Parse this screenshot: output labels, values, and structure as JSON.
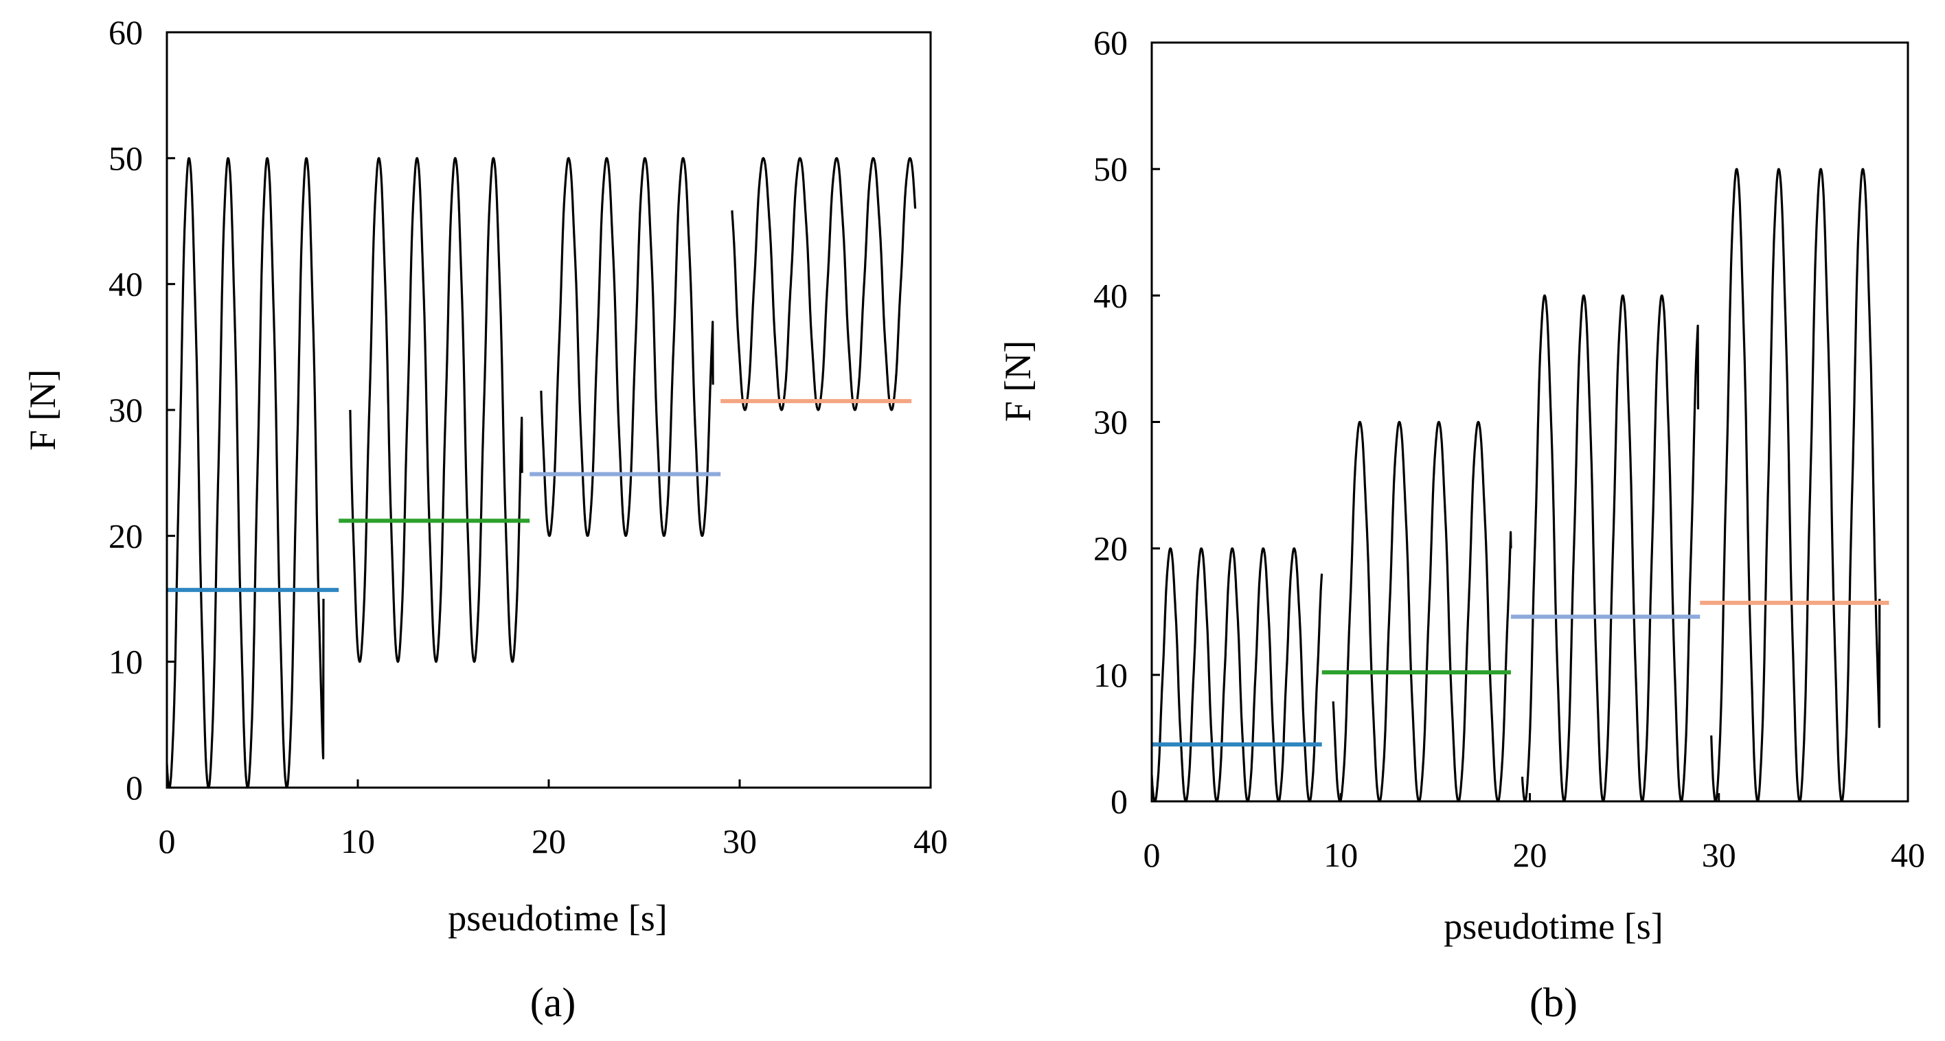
{
  "chart_data": [
    {
      "id": "a",
      "type": "line",
      "caption": "(a)",
      "xlabel": "pseudotime [s]",
      "ylabel": "F [N]",
      "xlim": [
        0,
        40
      ],
      "ylim": [
        0,
        60
      ],
      "xticks": [
        0,
        10,
        20,
        30,
        40
      ],
      "yticks": [
        0,
        10,
        20,
        30,
        40,
        50,
        60
      ],
      "grid": false,
      "oscillation_segments": [
        {
          "x_start": 0,
          "x_end": 8.2,
          "min": 0,
          "max": 50,
          "cycles": 4,
          "start_value": 2,
          "end_value": 15
        },
        {
          "x_start": 9.6,
          "x_end": 18.6,
          "min": 10,
          "max": 50,
          "cycles": 4.5,
          "start_value": 30,
          "end_value": 25
        },
        {
          "x_start": 19.6,
          "x_end": 28.6,
          "min": 20,
          "max": 50,
          "cycles": 4.5,
          "start_value": 32,
          "end_value": 32
        },
        {
          "x_start": 29.6,
          "x_end": 39.2,
          "min": 30,
          "max": 50,
          "cycles": 5,
          "start_value": 46,
          "end_value": 46
        }
      ],
      "mean_lines": [
        {
          "x_start": 0,
          "x_end": 9,
          "y": 15.7,
          "color": "#2e86c1"
        },
        {
          "x_start": 9,
          "x_end": 19,
          "y": 21.2,
          "color": "#2ca02c"
        },
        {
          "x_start": 19,
          "x_end": 29,
          "y": 24.9,
          "color": "#8eaadb"
        },
        {
          "x_start": 29,
          "x_end": 39,
          "y": 30.7,
          "color": "#f4a582"
        }
      ]
    },
    {
      "id": "b",
      "type": "line",
      "caption": "(b)",
      "xlabel": "pseudotime [s]",
      "ylabel": "F [N]",
      "xlim": [
        0,
        40
      ],
      "ylim": [
        0,
        60
      ],
      "xticks": [
        0,
        10,
        20,
        30,
        40
      ],
      "yticks": [
        0,
        10,
        20,
        30,
        40,
        50,
        60
      ],
      "grid": false,
      "oscillation_segments": [
        {
          "x_start": 0,
          "x_end": 9.0,
          "min": 0,
          "max": 20,
          "cycles": 5.5,
          "start_value": 2,
          "end_value": 18
        },
        {
          "x_start": 9.6,
          "x_end": 19.0,
          "min": 0,
          "max": 30,
          "cycles": 4.5,
          "start_value": 8,
          "end_value": 20
        },
        {
          "x_start": 19.6,
          "x_end": 28.9,
          "min": 0,
          "max": 40,
          "cycles": 4.5,
          "start_value": 2,
          "end_value": 31
        },
        {
          "x_start": 29.6,
          "x_end": 38.5,
          "min": 0,
          "max": 50,
          "cycles": 4,
          "start_value": 5,
          "end_value": 16
        }
      ],
      "mean_lines": [
        {
          "x_start": 0,
          "x_end": 9,
          "y": 4.5,
          "color": "#2e86c1"
        },
        {
          "x_start": 9,
          "x_end": 19,
          "y": 10.2,
          "color": "#2ca02c"
        },
        {
          "x_start": 19,
          "x_end": 29,
          "y": 14.6,
          "color": "#8eaadb"
        },
        {
          "x_start": 29,
          "x_end": 39,
          "y": 15.7,
          "color": "#f4a582"
        }
      ]
    }
  ]
}
